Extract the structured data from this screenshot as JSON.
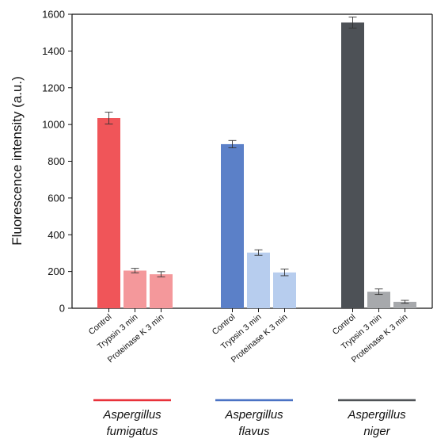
{
  "chart_data": {
    "type": "bar",
    "ylabel": "Fluorescence intensity (a.u.)",
    "ylim": [
      0,
      1600
    ],
    "yticks": [
      0,
      200,
      400,
      600,
      800,
      1000,
      1200,
      1400,
      1600
    ],
    "groups": [
      {
        "name_line1": "Aspergillus",
        "name_line2": "fumigatus",
        "color": "#E8313A",
        "bars": [
          {
            "category": "Control",
            "value": 1035,
            "error": 32,
            "color": "#F05559"
          },
          {
            "category": "Trypsin 3 min",
            "value": 205,
            "error": 12,
            "color": "#F4989B"
          },
          {
            "category": "Proteinase K 3 min",
            "value": 185,
            "error": 14,
            "color": "#F4989B"
          }
        ]
      },
      {
        "name_line1": "Aspergillus",
        "name_line2": "flavus",
        "color": "#4A72C4",
        "bars": [
          {
            "category": "Control",
            "value": 893,
            "error": 20,
            "color": "#5B80C8"
          },
          {
            "category": "Trypsin 3 min",
            "value": 303,
            "error": 15,
            "color": "#B7CDEE"
          },
          {
            "category": "Proteinase K 3 min",
            "value": 195,
            "error": 18,
            "color": "#B7CDEE"
          }
        ]
      },
      {
        "name_line1": "Aspergillus",
        "name_line2": "niger",
        "color": "#4F5256",
        "bars": [
          {
            "category": "Control",
            "value": 1555,
            "error": 30,
            "color": "#4D5156"
          },
          {
            "category": "Trypsin 3 min",
            "value": 90,
            "error": 15,
            "color": "#A7A9AC"
          },
          {
            "category": "Proteinase K 3 min",
            "value": 35,
            "error": 8,
            "color": "#A7A9AC"
          }
        ]
      }
    ],
    "grid": false,
    "legend": "none"
  }
}
